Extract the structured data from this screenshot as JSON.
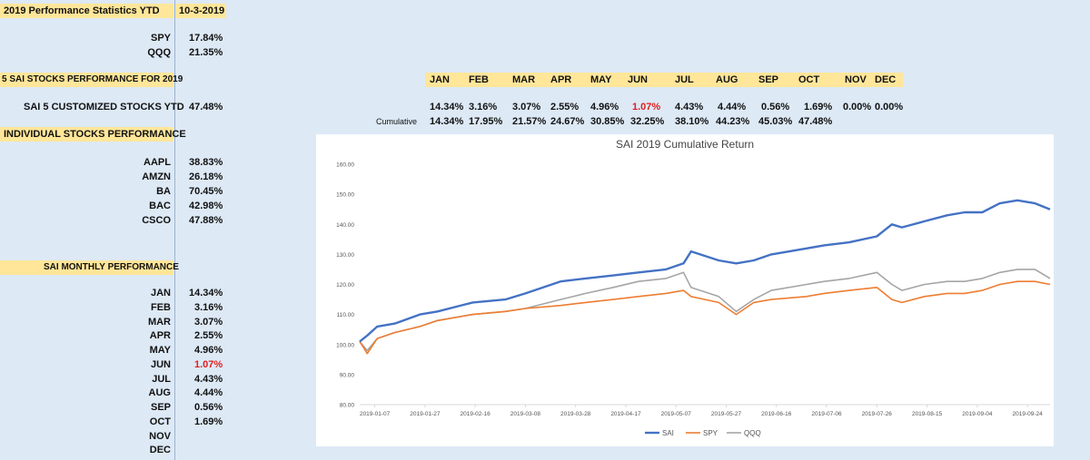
{
  "header": {
    "title": "2019 Performance Statistics YTD",
    "date": "10-3-2019"
  },
  "benchmarks": [
    {
      "label": "SPY",
      "value": "17.84%"
    },
    {
      "label": "QQQ",
      "value": "21.35%"
    }
  ],
  "section_sai": {
    "title": "5 SAI STOCKS PERFORMANCE FOR 2019"
  },
  "months": [
    "JAN",
    "FEB",
    "MAR",
    "APR",
    "MAY",
    "JUN",
    "JUL",
    "AUG",
    "SEP",
    "OCT",
    "NOV",
    "DEC"
  ],
  "sai_ytd": {
    "label": "SAI 5 CUSTOMIZED STOCKS YTD",
    "value": "47.48%"
  },
  "monthly_row": [
    "14.34%",
    "3.16%",
    "3.07%",
    "2.55%",
    "4.96%",
    "1.07%",
    "4.43%",
    "4.44%",
    "0.56%",
    "1.69%",
    "0.00%",
    "0.00%"
  ],
  "cumulative_label": "Cumulative",
  "cumulative_row": [
    "14.34%",
    "17.95%",
    "21.57%",
    "24.67%",
    "30.85%",
    "32.25%",
    "38.10%",
    "44.23%",
    "45.03%",
    "47.48%"
  ],
  "individual": {
    "title": "INDIVIDUAL STOCKS PERFORMANCE",
    "stocks": [
      {
        "label": "AAPL",
        "value": "38.83%"
      },
      {
        "label": "AMZN",
        "value": "26.18%"
      },
      {
        "label": "BA",
        "value": "70.45%"
      },
      {
        "label": "BAC",
        "value": "42.98%"
      },
      {
        "label": "CSCO",
        "value": "47.88%"
      }
    ]
  },
  "monthly_perf": {
    "title": "SAI MONTHLY PERFORMANCE",
    "rows": [
      {
        "label": "JAN",
        "value": "14.34%"
      },
      {
        "label": "FEB",
        "value": "3.16%"
      },
      {
        "label": "MAR",
        "value": "3.07%"
      },
      {
        "label": "APR",
        "value": "2.55%"
      },
      {
        "label": "MAY",
        "value": "4.96%"
      },
      {
        "label": "JUN",
        "value": "1.07%"
      },
      {
        "label": "JUL",
        "value": "4.43%"
      },
      {
        "label": "AUG",
        "value": "4.44%"
      },
      {
        "label": "SEP",
        "value": "0.56%"
      },
      {
        "label": "OCT",
        "value": "1.69%"
      },
      {
        "label": "NOV",
        "value": ""
      },
      {
        "label": "DEC",
        "value": ""
      }
    ]
  },
  "colors": {
    "highlight": "#ffe699",
    "negative_red": "#e02020",
    "sai": "#4472c4",
    "spy": "#ed7d31",
    "qqq": "#a5a5a5"
  },
  "chart_data": {
    "type": "line",
    "title": "SAI 2019 Cumulative Return",
    "xlabel": "",
    "ylabel": "",
    "ylim": [
      80,
      160
    ],
    "yticks": [
      "80.00",
      "90.00",
      "100.00",
      "110.00",
      "120.00",
      "130.00",
      "140.00",
      "150.00",
      "160.00"
    ],
    "xticks": [
      "2019-01-07",
      "2019-01-27",
      "2019-02-16",
      "2019-03-08",
      "2019-03-28",
      "2019-04-17",
      "2019-05-07",
      "2019-05-27",
      "2019-06-16",
      "2019-07-06",
      "2019-07-26",
      "2019-08-15",
      "2019-09-04",
      "2019-09-24"
    ],
    "x": [
      "2019-01-01",
      "2019-01-04",
      "2019-01-08",
      "2019-01-15",
      "2019-01-25",
      "2019-02-01",
      "2019-02-15",
      "2019-02-28",
      "2019-03-08",
      "2019-03-22",
      "2019-04-01",
      "2019-04-12",
      "2019-04-22",
      "2019-05-03",
      "2019-05-10",
      "2019-05-13",
      "2019-05-24",
      "2019-05-31",
      "2019-06-07",
      "2019-06-14",
      "2019-06-28",
      "2019-07-05",
      "2019-07-15",
      "2019-07-26",
      "2019-08-01",
      "2019-08-05",
      "2019-08-14",
      "2019-08-23",
      "2019-08-30",
      "2019-09-06",
      "2019-09-13",
      "2019-09-20",
      "2019-09-27",
      "2019-10-03"
    ],
    "series": [
      {
        "name": "SAI",
        "values": [
          101,
          103,
          106,
          107,
          110,
          111,
          114,
          115,
          117,
          121,
          122,
          123,
          124,
          125,
          127,
          131,
          128,
          127,
          128,
          130,
          132,
          133,
          134,
          136,
          140,
          139,
          141,
          143,
          144,
          144,
          147,
          148,
          147,
          145
        ]
      },
      {
        "name": "SPY",
        "values": [
          101,
          97,
          102,
          104,
          106,
          108,
          110,
          111,
          112,
          113,
          114,
          115,
          116,
          117,
          118,
          116,
          114,
          110,
          114,
          115,
          116,
          117,
          118,
          119,
          115,
          114,
          116,
          117,
          117,
          118,
          120,
          121,
          121,
          120
        ]
      },
      {
        "name": "QQQ",
        "values": [
          101,
          98,
          102,
          104,
          106,
          108,
          110,
          111,
          112,
          115,
          117,
          119,
          121,
          122,
          124,
          119,
          116,
          111,
          115,
          118,
          120,
          121,
          122,
          124,
          120,
          118,
          120,
          121,
          121,
          122,
          124,
          125,
          125,
          122
        ]
      }
    ],
    "legend": "bottom-center",
    "grid": false
  }
}
